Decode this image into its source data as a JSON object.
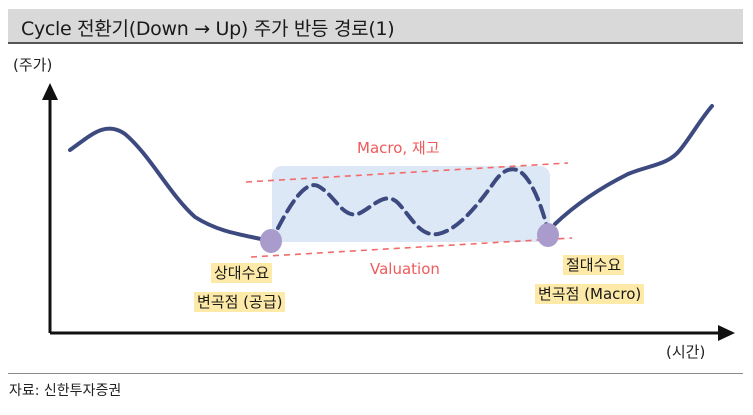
{
  "title": "Cycle 전환기(Down → Up) 주가 반등 경로(1)",
  "y_axis_label": "(주가)",
  "x_axis_label": "(시간)",
  "band_upper_label": "Macro, 재고",
  "band_lower_label": "Valuation",
  "left_point_label": {
    "line1": "상대수요",
    "line2": "변곡점 (공급)"
  },
  "right_point_label": {
    "line1": "절대수요",
    "line2": "변곡점 (Macro)"
  },
  "source": "자료: 신한투자증권",
  "colors": {
    "price_line": "#3d4a80",
    "band_fill": "#dde8f7",
    "band_lines": "#f26b6b",
    "point_fill": "#a99bcc",
    "label_highlight": "#fde9a8",
    "title_bar": "#d9d9d9"
  }
}
